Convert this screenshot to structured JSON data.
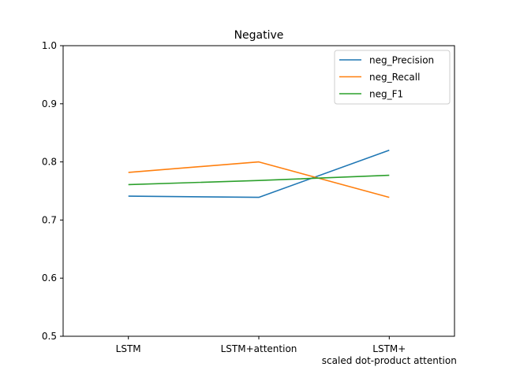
{
  "chart_data": {
    "type": "line",
    "title": "Negative",
    "xlabel": "",
    "ylabel": "",
    "categories": [
      [
        "LSTM"
      ],
      [
        "LSTM+attention"
      ],
      [
        "LSTM+",
        "scaled dot-product attention"
      ]
    ],
    "ylim": [
      0.5,
      1.0
    ],
    "yticks": [
      "0.5",
      "0.6",
      "0.7",
      "0.8",
      "0.9",
      "1.0"
    ],
    "grid": false,
    "legend_position": "top-right",
    "series": [
      {
        "name": "neg_Precision",
        "color": "#1f77b4",
        "values": [
          0.741,
          0.739,
          0.82
        ]
      },
      {
        "name": "neg_Recall",
        "color": "#ff7f0e",
        "values": [
          0.782,
          0.8,
          0.739
        ]
      },
      {
        "name": "neg_F1",
        "color": "#2ca02c",
        "values": [
          0.761,
          0.768,
          0.777
        ]
      }
    ]
  }
}
